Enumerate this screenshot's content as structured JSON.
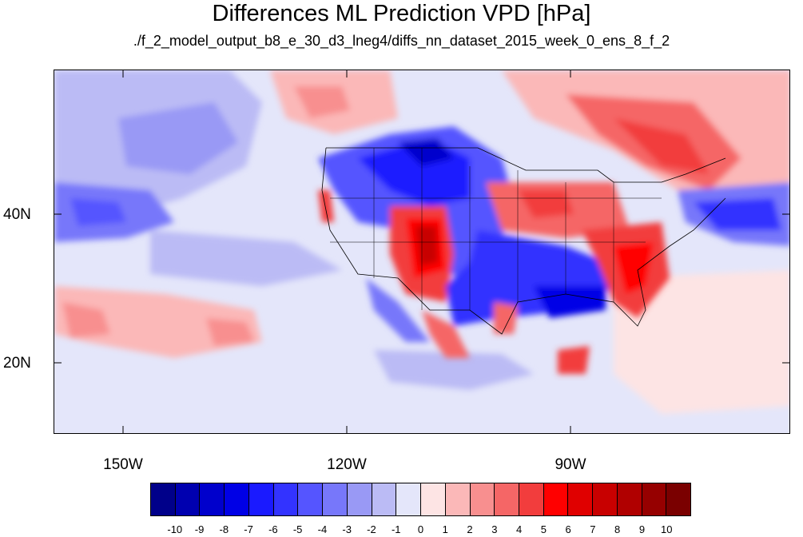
{
  "title": "Differences ML Prediction VPD [hPa]",
  "subtitle": "./f_2_model_output_b8_e_30_d3_lneg4/diffs_nn_dataset_2015_week_0_ens_8_f_2",
  "map": {
    "lat_labels": [
      "40N",
      "20N"
    ],
    "lon_labels": [
      "150W",
      "120W",
      "90W"
    ],
    "background_color": "#e4e6fa"
  },
  "colorbar": {
    "colors": [
      "#00008a",
      "#0000b0",
      "#0000cc",
      "#0000e6",
      "#1a1aff",
      "#3333ff",
      "#5555ff",
      "#7777fa",
      "#9999f5",
      "#bbbbf5",
      "#e4e6fa",
      "#fde4e4",
      "#fbb8b8",
      "#f88f8f",
      "#f56666",
      "#f23d3d",
      "#ff0000",
      "#e00000",
      "#c80000",
      "#b00000",
      "#960000",
      "#7a0000"
    ],
    "labels": [
      "-10",
      "-9",
      "-8",
      "-7",
      "-6",
      "-5",
      "-4",
      "-3",
      "-2",
      "-1",
      "0",
      "1",
      "2",
      "3",
      "4",
      "5",
      "6",
      "7",
      "8",
      "9",
      "10"
    ]
  }
}
